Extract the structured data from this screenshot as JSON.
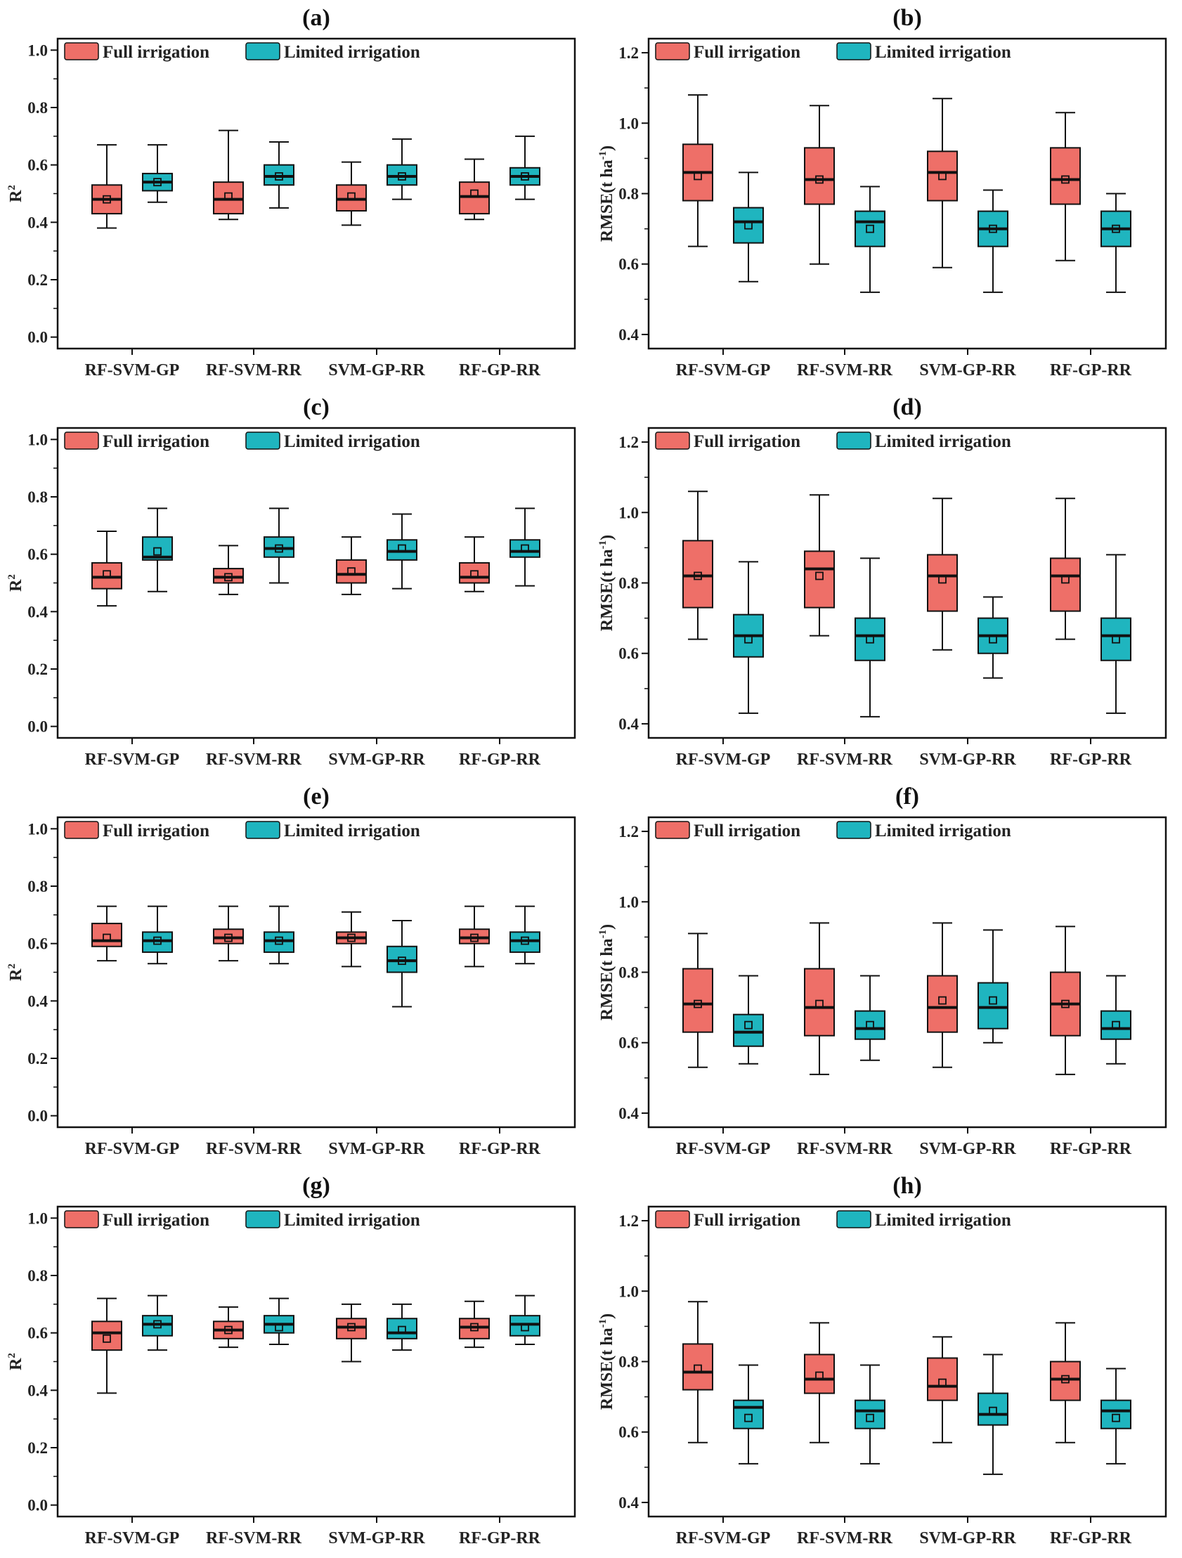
{
  "colors": {
    "full": "#ee6f68",
    "limited": "#1fb5bf",
    "line": "#111111"
  },
  "legend": {
    "full": "Full irrigation",
    "limited": "Limited irrigation"
  },
  "categories": [
    "RF-SVM-GP",
    "RF-SVM-RR",
    "SVM-GP-RR",
    "RF-GP-RR"
  ],
  "ylabels": {
    "r2": "R",
    "r2_sup": "2",
    "rmse": "RMSE(t  ha",
    "rmse_sup": "-1",
    "rmse_close": ")"
  },
  "chart_data": [
    {
      "id": "a",
      "title": "(a)",
      "type": "box",
      "metric": "R2",
      "ylim": [
        -0.04,
        1.04
      ],
      "yticks": [
        "0.0",
        "0.2",
        "0.4",
        "0.6",
        "0.8",
        "1.0"
      ],
      "series": [
        {
          "name": "Full irrigation",
          "boxes": [
            {
              "min": 0.38,
              "q1": 0.43,
              "median": 0.48,
              "mean": 0.48,
              "q3": 0.53,
              "max": 0.67
            },
            {
              "min": 0.41,
              "q1": 0.43,
              "median": 0.48,
              "mean": 0.49,
              "q3": 0.54,
              "max": 0.72
            },
            {
              "min": 0.39,
              "q1": 0.44,
              "median": 0.48,
              "mean": 0.49,
              "q3": 0.53,
              "max": 0.61
            },
            {
              "min": 0.41,
              "q1": 0.43,
              "median": 0.49,
              "mean": 0.5,
              "q3": 0.54,
              "max": 0.62
            }
          ]
        },
        {
          "name": "Limited irrigation",
          "boxes": [
            {
              "min": 0.47,
              "q1": 0.51,
              "median": 0.54,
              "mean": 0.54,
              "q3": 0.57,
              "max": 0.67
            },
            {
              "min": 0.45,
              "q1": 0.53,
              "median": 0.56,
              "mean": 0.56,
              "q3": 0.6,
              "max": 0.68
            },
            {
              "min": 0.48,
              "q1": 0.53,
              "median": 0.56,
              "mean": 0.56,
              "q3": 0.6,
              "max": 0.69
            },
            {
              "min": 0.48,
              "q1": 0.53,
              "median": 0.56,
              "mean": 0.56,
              "q3": 0.59,
              "max": 0.7
            }
          ]
        }
      ]
    },
    {
      "id": "b",
      "title": "(b)",
      "type": "box",
      "metric": "RMSE",
      "ylim": [
        0.36,
        1.24
      ],
      "yticks": [
        "0.4",
        "0.6",
        "0.8",
        "1.0",
        "1.2"
      ],
      "series": [
        {
          "name": "Full irrigation",
          "boxes": [
            {
              "min": 0.65,
              "q1": 0.78,
              "median": 0.86,
              "mean": 0.85,
              "q3": 0.94,
              "max": 1.08
            },
            {
              "min": 0.6,
              "q1": 0.77,
              "median": 0.84,
              "mean": 0.84,
              "q3": 0.93,
              "max": 1.05
            },
            {
              "min": 0.59,
              "q1": 0.78,
              "median": 0.86,
              "mean": 0.85,
              "q3": 0.92,
              "max": 1.07
            },
            {
              "min": 0.61,
              "q1": 0.77,
              "median": 0.84,
              "mean": 0.84,
              "q3": 0.93,
              "max": 1.03
            }
          ]
        },
        {
          "name": "Limited irrigation",
          "boxes": [
            {
              "min": 0.55,
              "q1": 0.66,
              "median": 0.72,
              "mean": 0.71,
              "q3": 0.76,
              "max": 0.86
            },
            {
              "min": 0.52,
              "q1": 0.65,
              "median": 0.72,
              "mean": 0.7,
              "q3": 0.75,
              "max": 0.82
            },
            {
              "min": 0.52,
              "q1": 0.65,
              "median": 0.7,
              "mean": 0.7,
              "q3": 0.75,
              "max": 0.81
            },
            {
              "min": 0.52,
              "q1": 0.65,
              "median": 0.7,
              "mean": 0.7,
              "q3": 0.75,
              "max": 0.8
            }
          ]
        }
      ]
    },
    {
      "id": "c",
      "title": "(c)",
      "type": "box",
      "metric": "R2",
      "ylim": [
        -0.04,
        1.04
      ],
      "yticks": [
        "0.0",
        "0.2",
        "0.4",
        "0.6",
        "0.8",
        "1.0"
      ],
      "series": [
        {
          "name": "Full irrigation",
          "boxes": [
            {
              "min": 0.42,
              "q1": 0.48,
              "median": 0.52,
              "mean": 0.53,
              "q3": 0.57,
              "max": 0.68
            },
            {
              "min": 0.46,
              "q1": 0.5,
              "median": 0.52,
              "mean": 0.52,
              "q3": 0.55,
              "max": 0.63
            },
            {
              "min": 0.46,
              "q1": 0.5,
              "median": 0.53,
              "mean": 0.54,
              "q3": 0.58,
              "max": 0.66
            },
            {
              "min": 0.47,
              "q1": 0.5,
              "median": 0.52,
              "mean": 0.53,
              "q3": 0.57,
              "max": 0.66
            }
          ]
        },
        {
          "name": "Limited irrigation",
          "boxes": [
            {
              "min": 0.47,
              "q1": 0.58,
              "median": 0.59,
              "mean": 0.61,
              "q3": 0.66,
              "max": 0.76
            },
            {
              "min": 0.5,
              "q1": 0.59,
              "median": 0.62,
              "mean": 0.62,
              "q3": 0.66,
              "max": 0.76
            },
            {
              "min": 0.48,
              "q1": 0.58,
              "median": 0.61,
              "mean": 0.62,
              "q3": 0.65,
              "max": 0.74
            },
            {
              "min": 0.49,
              "q1": 0.59,
              "median": 0.61,
              "mean": 0.62,
              "q3": 0.65,
              "max": 0.76
            }
          ]
        }
      ]
    },
    {
      "id": "d",
      "title": "(d)",
      "type": "box",
      "metric": "RMSE",
      "ylim": [
        0.36,
        1.24
      ],
      "yticks": [
        "0.4",
        "0.6",
        "0.8",
        "1.0",
        "1.2"
      ],
      "series": [
        {
          "name": "Full irrigation",
          "boxes": [
            {
              "min": 0.64,
              "q1": 0.73,
              "median": 0.82,
              "mean": 0.82,
              "q3": 0.92,
              "max": 1.06
            },
            {
              "min": 0.65,
              "q1": 0.73,
              "median": 0.84,
              "mean": 0.82,
              "q3": 0.89,
              "max": 1.05
            },
            {
              "min": 0.61,
              "q1": 0.72,
              "median": 0.82,
              "mean": 0.81,
              "q3": 0.88,
              "max": 1.04
            },
            {
              "min": 0.64,
              "q1": 0.72,
              "median": 0.82,
              "mean": 0.81,
              "q3": 0.87,
              "max": 1.04
            }
          ]
        },
        {
          "name": "Limited irrigation",
          "boxes": [
            {
              "min": 0.43,
              "q1": 0.59,
              "median": 0.65,
              "mean": 0.64,
              "q3": 0.71,
              "max": 0.86
            },
            {
              "min": 0.42,
              "q1": 0.58,
              "median": 0.65,
              "mean": 0.64,
              "q3": 0.7,
              "max": 0.87
            },
            {
              "min": 0.53,
              "q1": 0.6,
              "median": 0.65,
              "mean": 0.64,
              "q3": 0.7,
              "max": 0.76
            },
            {
              "min": 0.43,
              "q1": 0.58,
              "median": 0.65,
              "mean": 0.64,
              "q3": 0.7,
              "max": 0.88
            }
          ]
        }
      ]
    },
    {
      "id": "e",
      "title": "(e)",
      "type": "box",
      "metric": "R2",
      "ylim": [
        -0.04,
        1.04
      ],
      "yticks": [
        "0.0",
        "0.2",
        "0.4",
        "0.6",
        "0.8",
        "1.0"
      ],
      "series": [
        {
          "name": "Full irrigation",
          "boxes": [
            {
              "min": 0.54,
              "q1": 0.59,
              "median": 0.61,
              "mean": 0.62,
              "q3": 0.67,
              "max": 0.73
            },
            {
              "min": 0.54,
              "q1": 0.6,
              "median": 0.62,
              "mean": 0.62,
              "q3": 0.65,
              "max": 0.73
            },
            {
              "min": 0.52,
              "q1": 0.6,
              "median": 0.62,
              "mean": 0.62,
              "q3": 0.64,
              "max": 0.71
            },
            {
              "min": 0.52,
              "q1": 0.6,
              "median": 0.62,
              "mean": 0.62,
              "q3": 0.65,
              "max": 0.73
            }
          ]
        },
        {
          "name": "Limited irrigation",
          "boxes": [
            {
              "min": 0.53,
              "q1": 0.57,
              "median": 0.61,
              "mean": 0.61,
              "q3": 0.64,
              "max": 0.73
            },
            {
              "min": 0.53,
              "q1": 0.57,
              "median": 0.61,
              "mean": 0.61,
              "q3": 0.64,
              "max": 0.73
            },
            {
              "min": 0.38,
              "q1": 0.5,
              "median": 0.54,
              "mean": 0.54,
              "q3": 0.59,
              "max": 0.68
            },
            {
              "min": 0.53,
              "q1": 0.57,
              "median": 0.61,
              "mean": 0.61,
              "q3": 0.64,
              "max": 0.73
            }
          ]
        }
      ]
    },
    {
      "id": "f",
      "title": "(f)",
      "type": "box",
      "metric": "RMSE",
      "ylim": [
        0.36,
        1.24
      ],
      "yticks": [
        "0.4",
        "0.6",
        "0.8",
        "1.0",
        "1.2"
      ],
      "series": [
        {
          "name": "Full irrigation",
          "boxes": [
            {
              "min": 0.53,
              "q1": 0.63,
              "median": 0.71,
              "mean": 0.71,
              "q3": 0.81,
              "max": 0.91
            },
            {
              "min": 0.51,
              "q1": 0.62,
              "median": 0.7,
              "mean": 0.71,
              "q3": 0.81,
              "max": 0.94
            },
            {
              "min": 0.53,
              "q1": 0.63,
              "median": 0.7,
              "mean": 0.72,
              "q3": 0.79,
              "max": 0.94
            },
            {
              "min": 0.51,
              "q1": 0.62,
              "median": 0.71,
              "mean": 0.71,
              "q3": 0.8,
              "max": 0.93
            }
          ]
        },
        {
          "name": "Limited irrigation",
          "boxes": [
            {
              "min": 0.54,
              "q1": 0.59,
              "median": 0.63,
              "mean": 0.65,
              "q3": 0.68,
              "max": 0.79
            },
            {
              "min": 0.55,
              "q1": 0.61,
              "median": 0.64,
              "mean": 0.65,
              "q3": 0.69,
              "max": 0.79
            },
            {
              "min": 0.6,
              "q1": 0.64,
              "median": 0.7,
              "mean": 0.72,
              "q3": 0.77,
              "max": 0.92
            },
            {
              "min": 0.54,
              "q1": 0.61,
              "median": 0.64,
              "mean": 0.65,
              "q3": 0.69,
              "max": 0.79
            }
          ]
        }
      ]
    },
    {
      "id": "g",
      "title": "(g)",
      "type": "box",
      "metric": "R2",
      "ylim": [
        -0.04,
        1.04
      ],
      "yticks": [
        "0.0",
        "0.2",
        "0.4",
        "0.6",
        "0.8",
        "1.0"
      ],
      "series": [
        {
          "name": "Full irrigation",
          "boxes": [
            {
              "min": 0.39,
              "q1": 0.54,
              "median": 0.6,
              "mean": 0.58,
              "q3": 0.64,
              "max": 0.72
            },
            {
              "min": 0.55,
              "q1": 0.58,
              "median": 0.61,
              "mean": 0.61,
              "q3": 0.64,
              "max": 0.69
            },
            {
              "min": 0.5,
              "q1": 0.58,
              "median": 0.62,
              "mean": 0.62,
              "q3": 0.65,
              "max": 0.7
            },
            {
              "min": 0.55,
              "q1": 0.58,
              "median": 0.62,
              "mean": 0.62,
              "q3": 0.65,
              "max": 0.71
            }
          ]
        },
        {
          "name": "Limited irrigation",
          "boxes": [
            {
              "min": 0.54,
              "q1": 0.59,
              "median": 0.63,
              "mean": 0.63,
              "q3": 0.66,
              "max": 0.73
            },
            {
              "min": 0.56,
              "q1": 0.6,
              "median": 0.63,
              "mean": 0.62,
              "q3": 0.66,
              "max": 0.72
            },
            {
              "min": 0.54,
              "q1": 0.58,
              "median": 0.6,
              "mean": 0.61,
              "q3": 0.65,
              "max": 0.7
            },
            {
              "min": 0.56,
              "q1": 0.59,
              "median": 0.63,
              "mean": 0.62,
              "q3": 0.66,
              "max": 0.73
            }
          ]
        }
      ]
    },
    {
      "id": "h",
      "title": "(h)",
      "type": "box",
      "metric": "RMSE",
      "ylim": [
        0.36,
        1.24
      ],
      "yticks": [
        "0.4",
        "0.6",
        "0.8",
        "1.0",
        "1.2"
      ],
      "series": [
        {
          "name": "Full irrigation",
          "boxes": [
            {
              "min": 0.57,
              "q1": 0.72,
              "median": 0.77,
              "mean": 0.78,
              "q3": 0.85,
              "max": 0.97
            },
            {
              "min": 0.57,
              "q1": 0.71,
              "median": 0.75,
              "mean": 0.76,
              "q3": 0.82,
              "max": 0.91
            },
            {
              "min": 0.57,
              "q1": 0.69,
              "median": 0.73,
              "mean": 0.74,
              "q3": 0.81,
              "max": 0.87
            },
            {
              "min": 0.57,
              "q1": 0.69,
              "median": 0.75,
              "mean": 0.75,
              "q3": 0.8,
              "max": 0.91
            }
          ]
        },
        {
          "name": "Limited irrigation",
          "boxes": [
            {
              "min": 0.51,
              "q1": 0.61,
              "median": 0.67,
              "mean": 0.64,
              "q3": 0.69,
              "max": 0.79
            },
            {
              "min": 0.51,
              "q1": 0.61,
              "median": 0.66,
              "mean": 0.64,
              "q3": 0.69,
              "max": 0.79
            },
            {
              "min": 0.48,
              "q1": 0.62,
              "median": 0.65,
              "mean": 0.66,
              "q3": 0.71,
              "max": 0.82
            },
            {
              "min": 0.51,
              "q1": 0.61,
              "median": 0.66,
              "mean": 0.64,
              "q3": 0.69,
              "max": 0.78
            }
          ]
        }
      ]
    }
  ]
}
